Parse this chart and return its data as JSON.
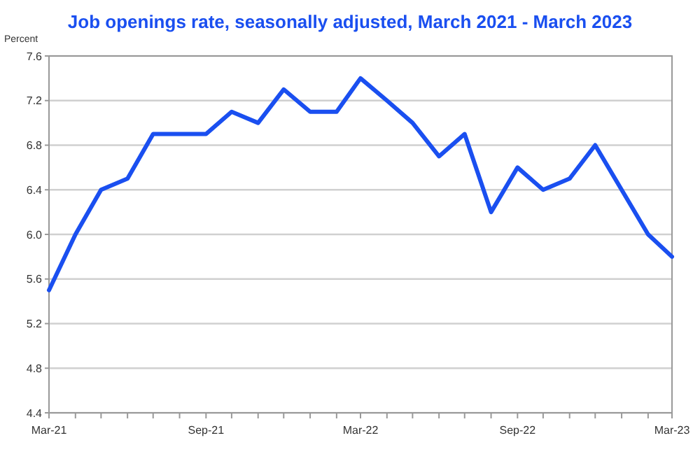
{
  "chart_data": {
    "type": "line",
    "title": "Job openings rate, seasonally adjusted, March 2021 - March 2023",
    "ylabel": "Percent",
    "x": [
      "2021-03",
      "2021-04",
      "2021-05",
      "2021-06",
      "2021-07",
      "2021-08",
      "2021-09",
      "2021-10",
      "2021-11",
      "2021-12",
      "2022-01",
      "2022-02",
      "2022-03",
      "2022-04",
      "2022-05",
      "2022-06",
      "2022-07",
      "2022-08",
      "2022-09",
      "2022-10",
      "2022-11",
      "2022-12",
      "2023-01",
      "2023-02",
      "2023-03"
    ],
    "series": [
      {
        "color": "#1a4ff0",
        "values": [
          5.5,
          6.0,
          6.4,
          6.5,
          6.9,
          6.9,
          6.9,
          7.1,
          7.0,
          7.3,
          7.1,
          7.1,
          7.4,
          7.2,
          7.0,
          6.7,
          6.9,
          6.2,
          6.6,
          6.4,
          6.5,
          6.8,
          6.4,
          6.0,
          5.8
        ]
      }
    ],
    "xlim": [
      "2021-03",
      "2023-03"
    ],
    "xticks": [
      {
        "value": "2021-03",
        "label": "Mar-21"
      },
      {
        "value": "2021-04",
        "label": null
      },
      {
        "value": "2021-05",
        "label": null
      },
      {
        "value": "2021-06",
        "label": null
      },
      {
        "value": "2021-07",
        "label": null
      },
      {
        "value": "2021-08",
        "label": null
      },
      {
        "value": "2021-09",
        "label": "Sep-21"
      },
      {
        "value": "2021-10",
        "label": null
      },
      {
        "value": "2021-11",
        "label": null
      },
      {
        "value": "2021-12",
        "label": null
      },
      {
        "value": "2022-01",
        "label": null
      },
      {
        "value": "2022-02",
        "label": null
      },
      {
        "value": "2022-03",
        "label": "Mar-22"
      },
      {
        "value": "2022-04",
        "label": null
      },
      {
        "value": "2022-05",
        "label": null
      },
      {
        "value": "2022-06",
        "label": null
      },
      {
        "value": "2022-07",
        "label": null
      },
      {
        "value": "2022-08",
        "label": null
      },
      {
        "value": "2022-09",
        "label": "Sep-22"
      },
      {
        "value": "2022-10",
        "label": null
      },
      {
        "value": "2022-11",
        "label": null
      },
      {
        "value": "2022-12",
        "label": null
      },
      {
        "value": "2023-01",
        "label": null
      },
      {
        "value": "2023-02",
        "label": null
      },
      {
        "value": "2023-03",
        "label": "Mar-23"
      }
    ],
    "ylim": [
      4.4,
      7.6
    ],
    "yticks": [
      {
        "value": 4.4,
        "label": "4.4"
      },
      {
        "value": 4.8,
        "label": "4.8"
      },
      {
        "value": 5.2,
        "label": "5.2"
      },
      {
        "value": 5.6,
        "label": "5.6"
      },
      {
        "value": 6.0,
        "label": "6.0"
      },
      {
        "value": 6.4,
        "label": "6.4"
      },
      {
        "value": 6.8,
        "label": "6.8"
      },
      {
        "value": 7.2,
        "label": "7.2"
      },
      {
        "value": 7.6,
        "label": "7.6"
      }
    ],
    "grid": "y",
    "marker": "none",
    "line_style": "solid"
  }
}
